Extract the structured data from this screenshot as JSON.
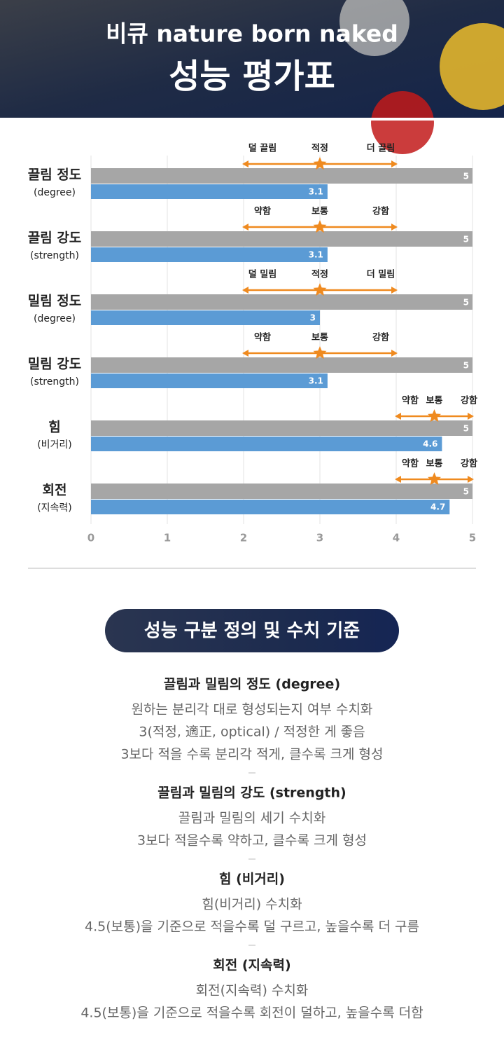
{
  "header": {
    "line1": "비큐 nature born naked",
    "line2": "성능 평가표"
  },
  "chart_data": {
    "type": "bar",
    "orientation": "horizontal",
    "categories": [
      "끌림 정도",
      "끌림 강도",
      "밀림 정도",
      "밀림 강도",
      "힘",
      "회전"
    ],
    "category_sublabels": [
      "(degree)",
      "(strength)",
      "(degree)",
      "(strength)",
      "(비거리)",
      "(지속력)"
    ],
    "max_values": [
      5,
      5,
      5,
      5,
      5,
      5
    ],
    "max_color": "#a6a6a6",
    "values": [
      3.1,
      3.1,
      3,
      3.1,
      4.6,
      4.7
    ],
    "color": "#5b9bd5",
    "xlim": [
      0,
      5
    ],
    "xticks": [
      0,
      1,
      2,
      3,
      4,
      5
    ],
    "grid": true,
    "scales": [
      {
        "labels": [
          "덜 끌림",
          "적정",
          "더 끌림"
        ],
        "range": [
          2,
          4
        ],
        "target": 3
      },
      {
        "labels": [
          "약함",
          "보통",
          "강함"
        ],
        "range": [
          2,
          4
        ],
        "target": 3
      },
      {
        "labels": [
          "덜 밀림",
          "적정",
          "더 밀림"
        ],
        "range": [
          2,
          4
        ],
        "target": 3
      },
      {
        "labels": [
          "약함",
          "보통",
          "강함"
        ],
        "range": [
          2,
          4
        ],
        "target": 3
      },
      {
        "labels": [
          "약함",
          "보통",
          "강함"
        ],
        "range": [
          4,
          5
        ],
        "target": 4.5
      },
      {
        "labels": [
          "약함",
          "보통",
          "강함"
        ],
        "range": [
          4,
          5
        ],
        "target": 4.5
      }
    ],
    "scale_color": "#ef8a1f"
  },
  "section_title": "성능 구분 정의 및 수치 기준",
  "definitions": [
    {
      "title": "끌림과 밀림의 정도 (degree)",
      "lines": [
        "원하는 분리각 대로 형성되는지 여부 수치화",
        "3(적정, 適正, optical) / 적정한 게 좋음",
        "3보다 적을 수록 분리각 적게, 클수록 크게 형성"
      ]
    },
    {
      "title": "끌림과 밀림의 강도 (strength)",
      "lines": [
        "끌림과 밀림의 세기 수치화",
        "3보다 적을수록 약하고, 클수록 크게 형성"
      ]
    },
    {
      "title": "힘 (비거리)",
      "lines": [
        "힘(비거리) 수치화",
        "4.5(보통)을 기준으로 적을수록 덜 구르고, 높을수록 더 구름"
      ]
    },
    {
      "title": "회전 (지속력)",
      "lines": [
        "회전(지속력) 수치화",
        "4.5(보통)을 기준으로 적을수록 회전이 덜하고, 높을수록 더함"
      ]
    }
  ]
}
